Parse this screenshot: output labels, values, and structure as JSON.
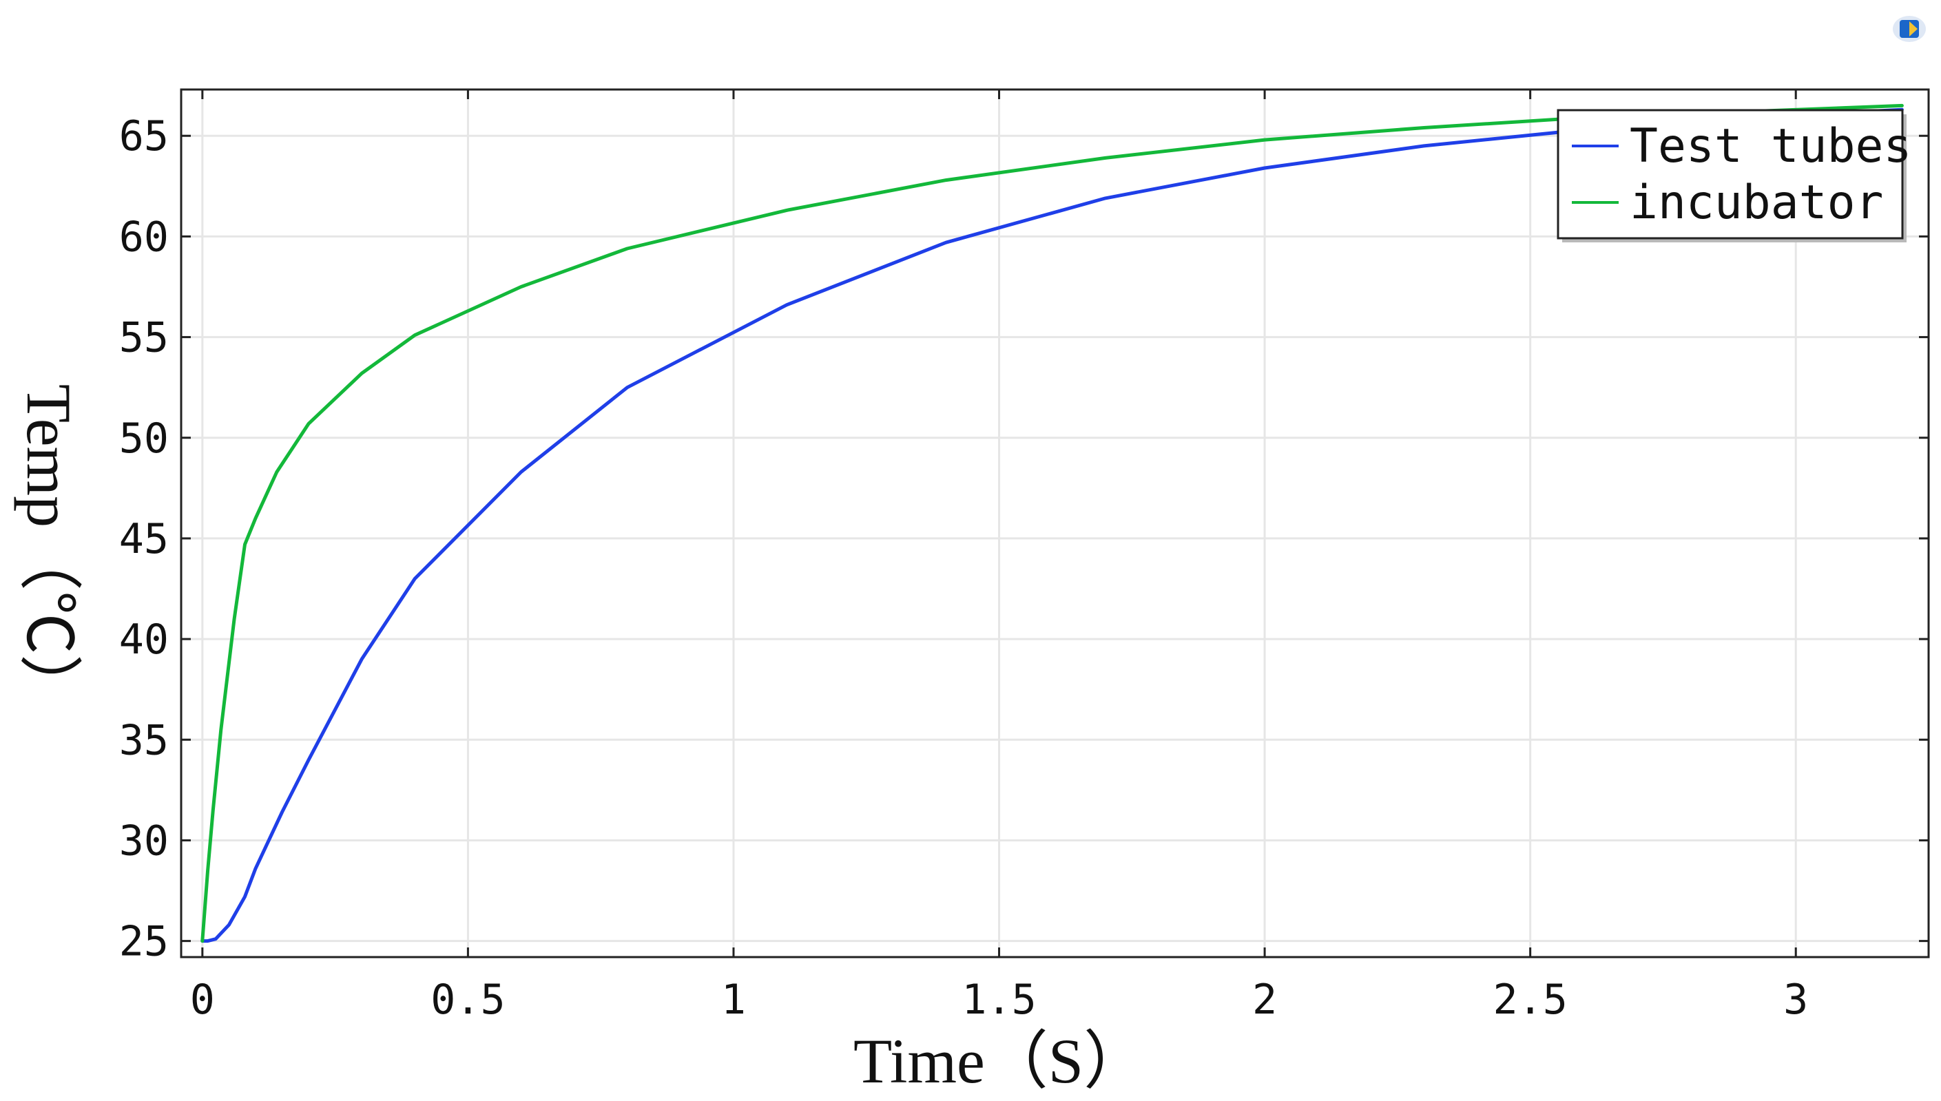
{
  "colors": {
    "test_tubes": "#1f3fe8",
    "incubator": "#13b83a",
    "grid": "#e6e6e6",
    "frame": "#222222",
    "logo_blue": "#1b66c9",
    "logo_yellow": "#f2c232"
  },
  "corner_icon": "app-logo-icon",
  "chart_data": {
    "type": "line",
    "xlabel": "Time（S）",
    "ylabel": "Temp（℃）",
    "xlim": [
      -0.04,
      3.25
    ],
    "ylim": [
      24.2,
      67.3
    ],
    "xticks": [
      0,
      0.5,
      1,
      1.5,
      2,
      2.5,
      3
    ],
    "xtick_labels": [
      "0",
      "0.5",
      "1",
      "1.5",
      "2",
      "2.5",
      "3"
    ],
    "yticks": [
      25,
      30,
      35,
      40,
      45,
      50,
      55,
      60,
      65
    ],
    "ytick_labels": [
      "25",
      "30",
      "35",
      "40",
      "45",
      "50",
      "55",
      "60",
      "65"
    ],
    "grid": true,
    "legend_position": "top-right",
    "series": [
      {
        "name": "Test tubes",
        "color_key": "test_tubes",
        "x": [
          0,
          0.01,
          0.025,
          0.05,
          0.08,
          0.1,
          0.15,
          0.2,
          0.3,
          0.4,
          0.6,
          0.8,
          1.1,
          1.4,
          1.7,
          2.0,
          2.3,
          2.6,
          2.9,
          3.2
        ],
        "y": [
          25,
          25,
          25.1,
          25.8,
          27.2,
          28.6,
          31.4,
          34,
          39,
          43,
          48.3,
          52.5,
          56.6,
          59.7,
          61.9,
          63.4,
          64.5,
          65.3,
          65.9,
          66.3
        ]
      },
      {
        "name": "incubator",
        "color_key": "incubator",
        "x": [
          0,
          0.01,
          0.02,
          0.035,
          0.06,
          0.08,
          0.1,
          0.14,
          0.2,
          0.3,
          0.4,
          0.6,
          0.8,
          1.1,
          1.4,
          1.7,
          2.0,
          2.3,
          2.6,
          2.9,
          3.2
        ],
        "y": [
          25,
          28.5,
          31.5,
          35.5,
          41,
          44.7,
          46,
          48.3,
          50.7,
          53.2,
          55.1,
          57.5,
          59.4,
          61.3,
          62.8,
          63.9,
          64.8,
          65.4,
          65.9,
          66.2,
          66.5
        ]
      }
    ]
  }
}
